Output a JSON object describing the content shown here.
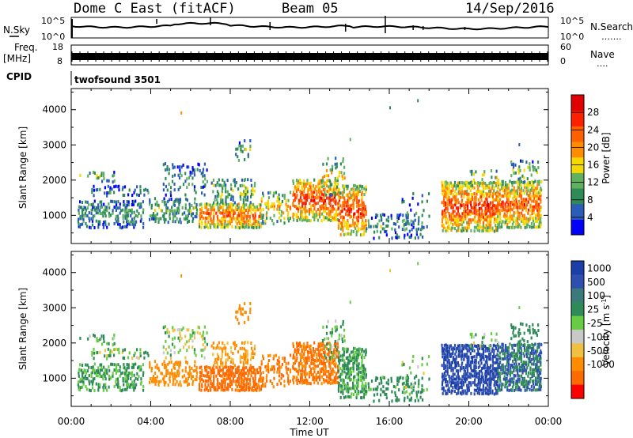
{
  "header": {
    "title": "Dome C East (fitACF)",
    "beam": "Beam 05",
    "date": "14/Sep/2016"
  },
  "noise_panel": {
    "left_label": "N.Sky",
    "right_label": "N.Search",
    "right_dots": "…….",
    "left_ticks": [
      "10^5",
      "10^0"
    ],
    "right_ticks": [
      "10^5",
      "10^0"
    ]
  },
  "freq_panel": {
    "left_label_1": "Freq.",
    "left_label_2": "[MHz]",
    "right_label": "Nave",
    "right_dots": "….",
    "left_ticks": [
      "18",
      "8"
    ],
    "right_ticks": [
      "60",
      "0"
    ]
  },
  "cpid": {
    "label": "CPID",
    "value": "twofsound 3501"
  },
  "colors": {
    "power_scale": [
      "#0000ff",
      "#2b5cb8",
      "#2e8b57",
      "#5fb05f",
      "#f5d800",
      "#ff8c00",
      "#ff6000",
      "#ff2000",
      "#e00000"
    ],
    "velocity_scale": [
      "#ff0000",
      "#ff6a00",
      "#ff8c00",
      "#f0c040",
      "#c8c8c8",
      "#66cc44",
      "#2e8b57",
      "#3a7a7a",
      "#2f4fb0",
      "#1a3fa8"
    ]
  },
  "chart_data": [
    {
      "type": "heatmap",
      "quantity": "Power",
      "xlabel": "",
      "ylabel": "Slant Range [km]",
      "xlim": [
        0,
        24
      ],
      "ylim": [
        200,
        4600
      ],
      "yticks": [
        "1000",
        "2000",
        "3000",
        "4000"
      ],
      "colorbar": {
        "label": "Power [dB]",
        "ticks": [
          "4",
          "8",
          "12",
          "16",
          "20",
          "24",
          "28"
        ],
        "range": [
          0,
          32
        ]
      }
    },
    {
      "type": "heatmap",
      "quantity": "Velocity",
      "xlabel": "Time UT",
      "ylabel": "Slant Range [km]",
      "xlim": [
        0,
        24
      ],
      "ylim": [
        200,
        4600
      ],
      "xticks": [
        "00:00",
        "04:00",
        "08:00",
        "12:00",
        "16:00",
        "20:00",
        "00:00"
      ],
      "yticks": [
        "1000",
        "2000",
        "3000",
        "4000"
      ],
      "colorbar": {
        "label": "Velocity [m s^-1]",
        "ticks": [
          "1000",
          "500",
          "100",
          "25",
          "-25",
          "-100",
          "-500",
          "-1000"
        ]
      }
    }
  ]
}
